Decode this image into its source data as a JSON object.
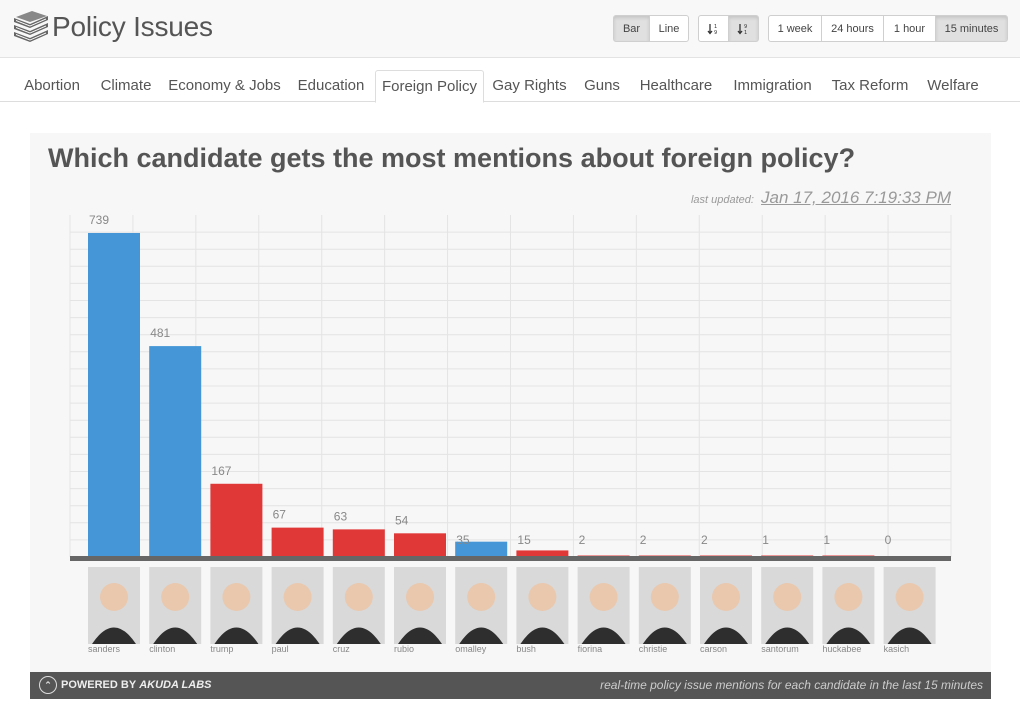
{
  "app": {
    "title": "Policy Issues",
    "logo_icon": "books-icon"
  },
  "chart_type_buttons": [
    {
      "label": "Bar",
      "active": true
    },
    {
      "label": "Line",
      "active": false
    }
  ],
  "sort_buttons": [
    {
      "label": "↓½",
      "icon": "sort-ascending-icon",
      "active": false
    },
    {
      "label": "↓¼",
      "icon": "sort-descending-icon",
      "active": true
    }
  ],
  "time_buttons": [
    {
      "label": "1 week",
      "active": false
    },
    {
      "label": "24 hours",
      "active": false
    },
    {
      "label": "1 hour",
      "active": false
    },
    {
      "label": "15 minutes",
      "active": true
    }
  ],
  "tabs": [
    {
      "label": "Abortion",
      "active": false
    },
    {
      "label": "Climate",
      "active": false
    },
    {
      "label": "Economy & Jobs",
      "active": false
    },
    {
      "label": "Education",
      "active": false
    },
    {
      "label": "Foreign Policy",
      "active": true
    },
    {
      "label": "Gay Rights",
      "active": false
    },
    {
      "label": "Guns",
      "active": false
    },
    {
      "label": "Healthcare",
      "active": false
    },
    {
      "label": "Immigration",
      "active": false
    },
    {
      "label": "Tax Reform",
      "active": false
    },
    {
      "label": "Welfare",
      "active": false
    }
  ],
  "panel": {
    "title": "Which candidate gets the most mentions about foreign policy?",
    "updated_label": "last updated:",
    "updated_value": "Jan 17, 2016 7:19:33 PM"
  },
  "chart_data": {
    "type": "bar",
    "categories": [
      "sanders",
      "clinton",
      "trump",
      "paul",
      "cruz",
      "rubio",
      "omalley",
      "bush",
      "fiorina",
      "christie",
      "carson",
      "santorum",
      "huckabee",
      "kasich"
    ],
    "values": [
      739,
      481,
      167,
      67,
      63,
      54,
      35,
      15,
      2,
      2,
      2,
      1,
      1,
      0
    ],
    "parties": [
      "dem",
      "dem",
      "rep",
      "rep",
      "rep",
      "rep",
      "dem",
      "rep",
      "rep",
      "rep",
      "rep",
      "rep",
      "rep",
      "rep"
    ],
    "colors": {
      "dem": "#4496d6",
      "rep": "#e03737"
    },
    "ylim": [
      0,
      780
    ],
    "grid": true
  },
  "footer": {
    "powered_by": "POWERED BY",
    "company": "AKUDA LABS",
    "note": "real-time policy issue mentions for each candidate in the last 15 minutes"
  }
}
